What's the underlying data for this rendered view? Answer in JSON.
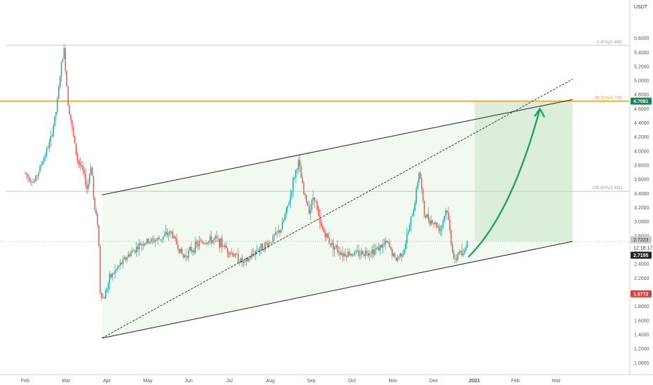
{
  "currency": "USDT",
  "colors": {
    "up": "#26a69a",
    "down": "#ef5350",
    "resistance": "#f7a21b",
    "channel": "#1f1f1f",
    "channel_fill": "#eef7ee",
    "target_zone": "#d6ecd6",
    "stop_zone": "#fde1e1",
    "arrow": "#22a35a",
    "fib_line": "#c8c8c8"
  },
  "price_tags": {
    "resistance": "4.7081",
    "entry": "2.7223",
    "countdown": "12:18:17",
    "current": "2.7195",
    "stop": "1.9772"
  },
  "fib_labels": {
    "top": "0.00%(5.499)",
    "mid": "38.20%(4.708)",
    "bottom": "100.00%(3.431)"
  },
  "chart_data": {
    "type": "candlestick",
    "x_labels": [
      "Feb",
      "Mar",
      "Apr",
      "May",
      "Jun",
      "Jul",
      "Aug",
      "Sep",
      "Oct",
      "Nov",
      "Dec",
      "2021",
      "Feb",
      "Mar"
    ],
    "y_ticks": [
      "5.6000",
      "5.4000",
      "5.2000",
      "5.0000",
      "4.8000",
      "4.6000",
      "4.4000",
      "4.2000",
      "4.0000",
      "3.8000",
      "3.6000",
      "3.4000",
      "3.2000",
      "3.0000",
      "2.8000",
      "2.6000",
      "2.4000",
      "2.2000",
      "2.0000",
      "1.8000",
      "1.6000",
      "1.4000",
      "1.2000",
      "1.0000"
    ],
    "ylim": [
      0.9,
      5.85
    ],
    "price_path": [
      {
        "month": 0.0,
        "price": 3.7
      },
      {
        "month": 0.25,
        "price": 3.55
      },
      {
        "month": 0.45,
        "price": 3.85
      },
      {
        "month": 0.65,
        "price": 4.15
      },
      {
        "month": 0.8,
        "price": 4.6
      },
      {
        "month": 0.9,
        "price": 5.15
      },
      {
        "month": 0.98,
        "price": 5.45
      },
      {
        "month": 1.08,
        "price": 4.7
      },
      {
        "month": 1.2,
        "price": 4.25
      },
      {
        "month": 1.3,
        "price": 3.9
      },
      {
        "month": 1.45,
        "price": 3.7
      },
      {
        "month": 1.55,
        "price": 3.45
      },
      {
        "month": 1.65,
        "price": 3.85
      },
      {
        "month": 1.72,
        "price": 3.2
      },
      {
        "month": 1.82,
        "price": 2.95
      },
      {
        "month": 1.87,
        "price": 2.0
      },
      {
        "month": 1.95,
        "price": 1.9
      },
      {
        "month": 2.1,
        "price": 2.2
      },
      {
        "month": 2.3,
        "price": 2.35
      },
      {
        "month": 2.6,
        "price": 2.55
      },
      {
        "month": 2.9,
        "price": 2.7
      },
      {
        "month": 3.3,
        "price": 2.75
      },
      {
        "month": 3.6,
        "price": 2.85
      },
      {
        "month": 3.9,
        "price": 2.5
      },
      {
        "month": 4.3,
        "price": 2.7
      },
      {
        "month": 4.7,
        "price": 2.75
      },
      {
        "month": 5.0,
        "price": 2.6
      },
      {
        "month": 5.4,
        "price": 2.4
      },
      {
        "month": 5.7,
        "price": 2.6
      },
      {
        "month": 6.0,
        "price": 2.7
      },
      {
        "month": 6.3,
        "price": 2.9
      },
      {
        "month": 6.5,
        "price": 3.3
      },
      {
        "month": 6.6,
        "price": 3.6
      },
      {
        "month": 6.72,
        "price": 3.85
      },
      {
        "month": 6.85,
        "price": 3.4
      },
      {
        "month": 7.0,
        "price": 3.15
      },
      {
        "month": 7.1,
        "price": 3.4
      },
      {
        "month": 7.25,
        "price": 2.95
      },
      {
        "month": 7.5,
        "price": 2.7
      },
      {
        "month": 7.8,
        "price": 2.55
      },
      {
        "month": 8.2,
        "price": 2.55
      },
      {
        "month": 8.6,
        "price": 2.6
      },
      {
        "month": 8.9,
        "price": 2.7
      },
      {
        "month": 9.1,
        "price": 2.45
      },
      {
        "month": 9.3,
        "price": 2.6
      },
      {
        "month": 9.55,
        "price": 3.2
      },
      {
        "month": 9.68,
        "price": 3.75
      },
      {
        "month": 9.8,
        "price": 3.1
      },
      {
        "month": 10.0,
        "price": 3.0
      },
      {
        "month": 10.2,
        "price": 2.9
      },
      {
        "month": 10.35,
        "price": 3.2
      },
      {
        "month": 10.45,
        "price": 2.75
      },
      {
        "month": 10.55,
        "price": 2.4
      },
      {
        "month": 10.65,
        "price": 2.6
      },
      {
        "month": 10.75,
        "price": 2.5
      },
      {
        "month": 10.85,
        "price": 2.75
      }
    ],
    "horizontal_levels": [
      {
        "name": "fib 0.00%",
        "price": 5.499
      },
      {
        "name": "fib 38.20%",
        "price": 4.708
      },
      {
        "name": "fib 100.00%",
        "price": 3.431
      },
      {
        "name": "entry",
        "price": 2.7223
      }
    ],
    "channel": {
      "lower": [
        {
          "month": 1.88,
          "price": 1.35
        },
        {
          "month": 13.4,
          "price": 2.72
        }
      ],
      "upper": [
        {
          "month": 1.88,
          "price": 3.38
        },
        {
          "month": 13.4,
          "price": 4.73
        }
      ]
    },
    "dashed_trend": [
      {
        "month": 1.88,
        "price": 1.35
      },
      {
        "month": 13.4,
        "price": 5.02
      }
    ],
    "target_zone": {
      "from_month": 11.0,
      "to_month": 13.4,
      "from_price": 2.7223,
      "to_price": 4.7081
    },
    "stop_zone": {
      "from_month": 11.0,
      "to_month": 13.4,
      "from_price": 1.9772,
      "to_price": 2.7223
    },
    "projection_arrow": [
      {
        "month": 10.85,
        "price": 2.5
      },
      {
        "month": 11.9,
        "price": 3.1
      },
      {
        "month": 12.6,
        "price": 4.6
      }
    ]
  }
}
